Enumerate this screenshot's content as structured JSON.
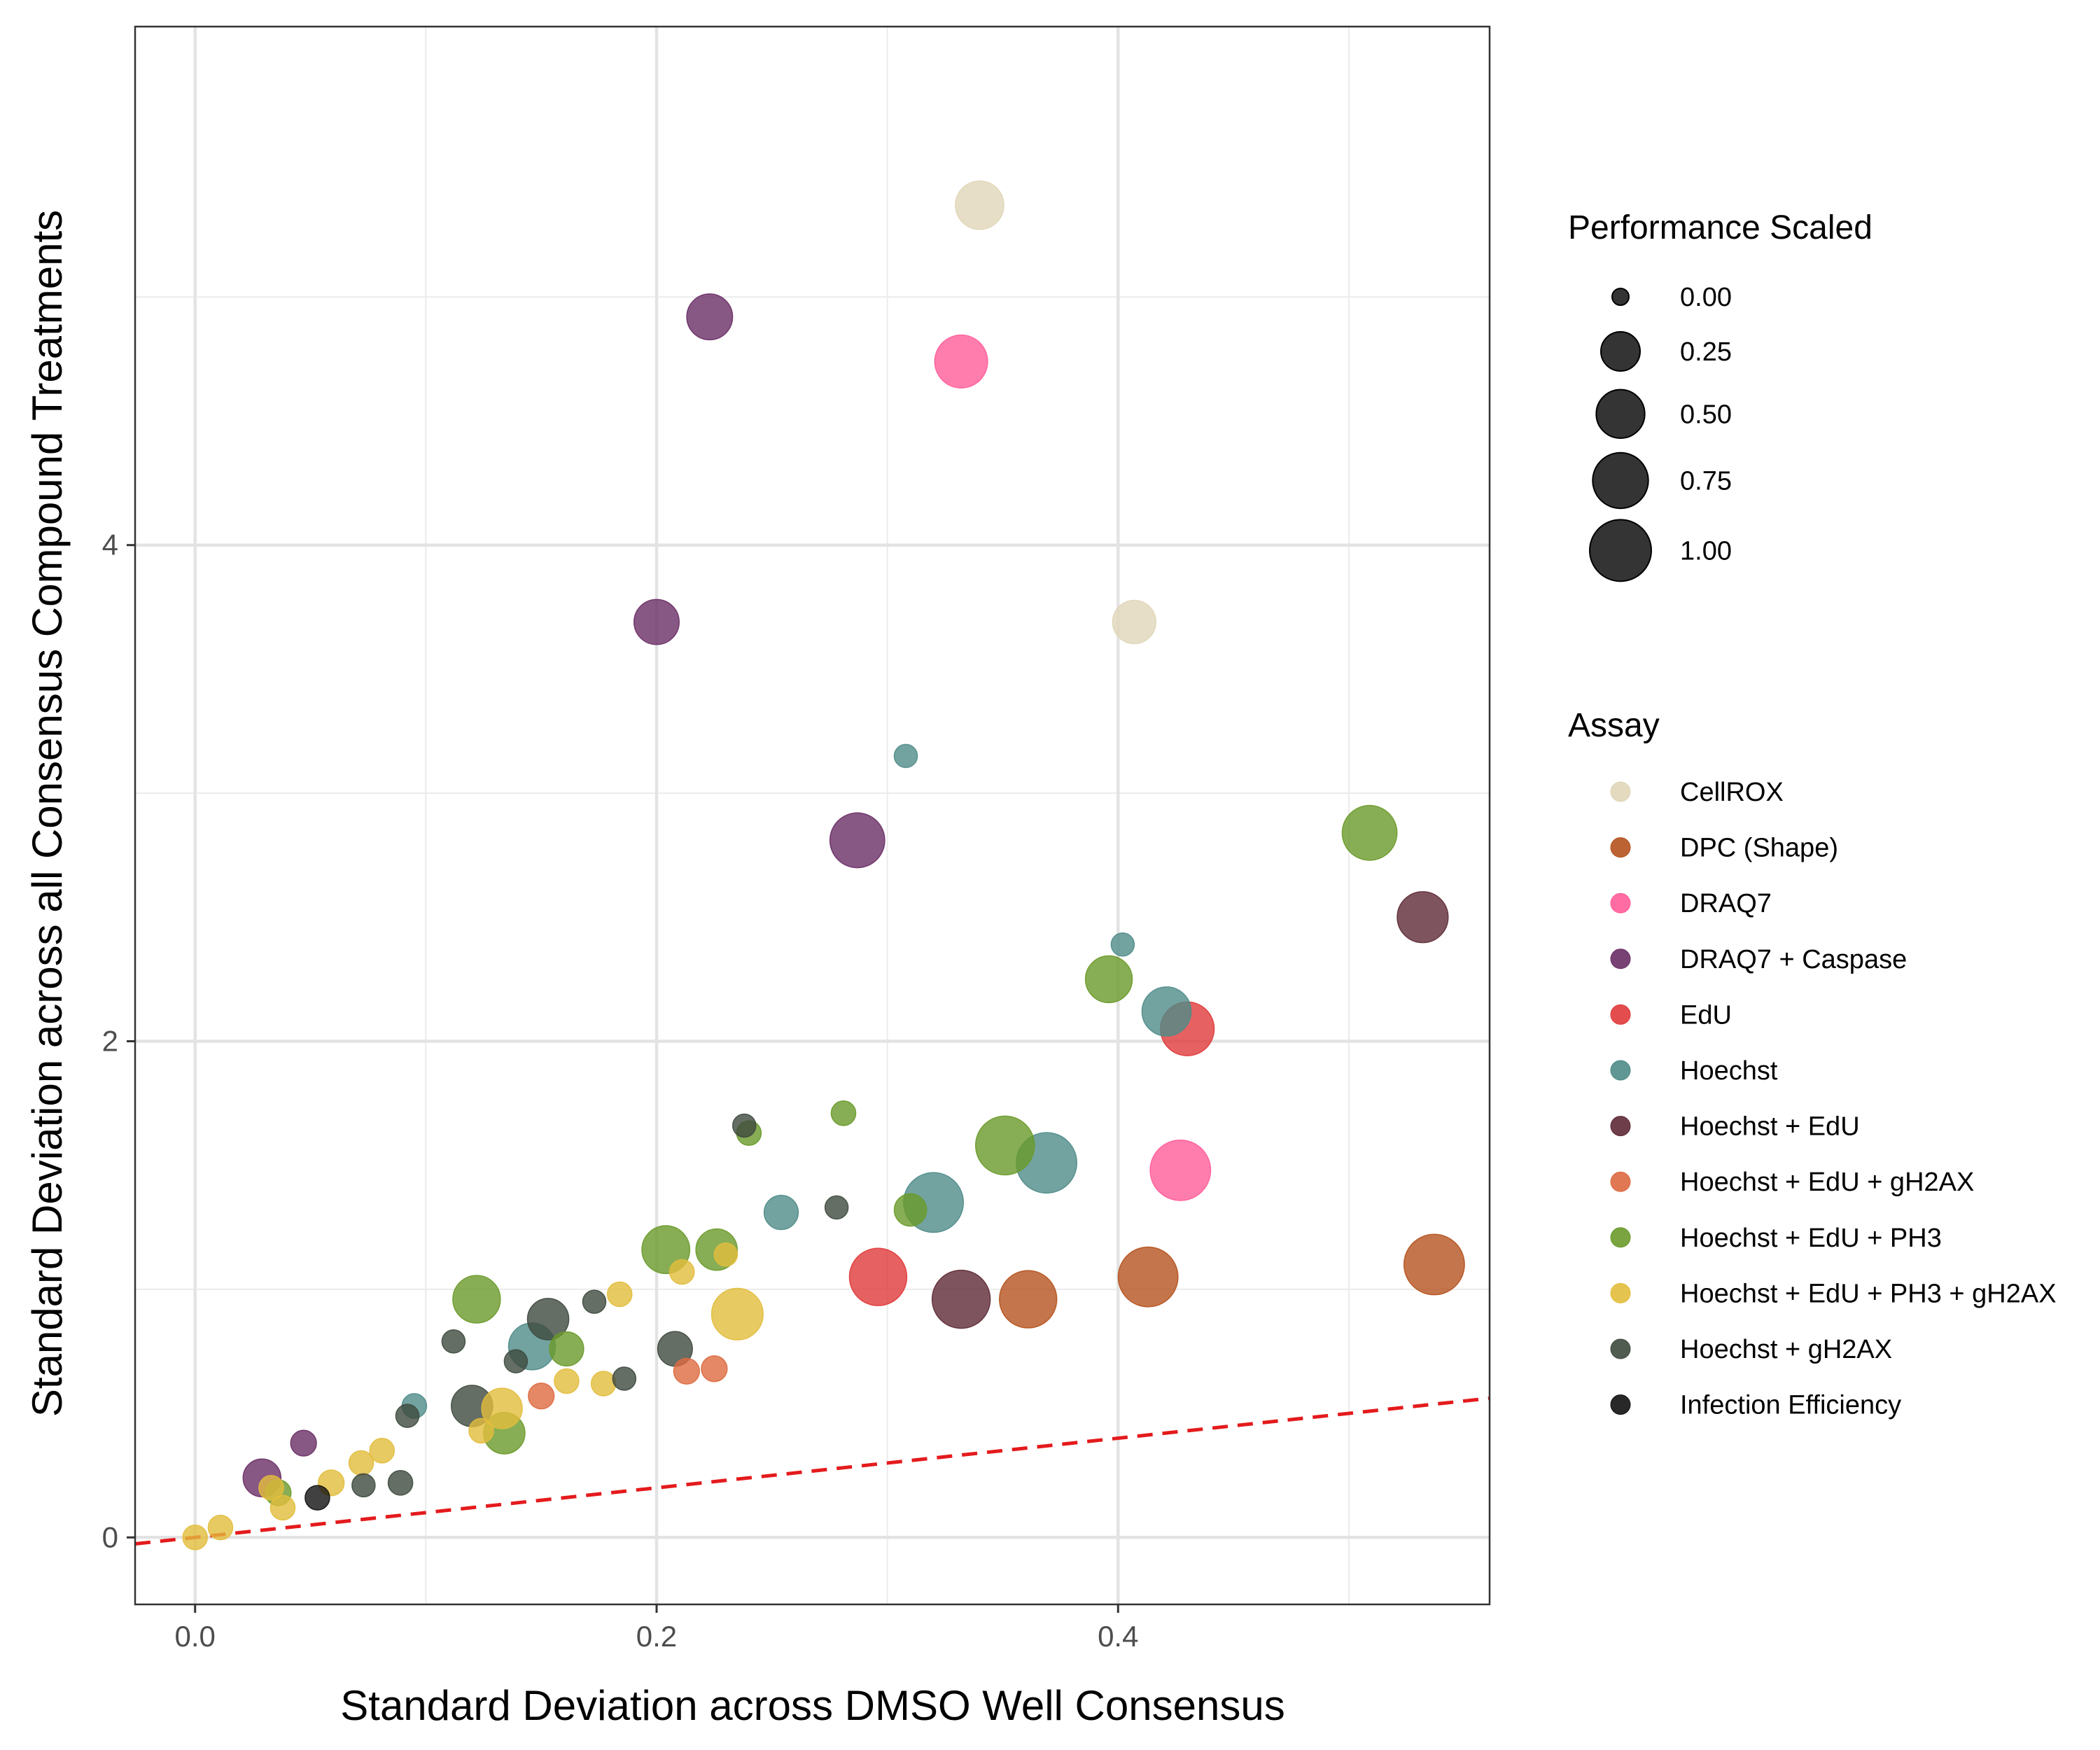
{
  "chart_data": {
    "type": "scatter",
    "title": "",
    "xlabel": "Standard Deviation across DMSO Well Consensus",
    "ylabel": "Standard Deviation across all Consensus Compound Treatments",
    "xlim": [
      -0.026,
      0.561
    ],
    "ylim": [
      -0.27,
      6.09
    ],
    "x_ticks": [
      0.0,
      0.2,
      0.4
    ],
    "x_tick_labels": [
      "0.0",
      "0.2",
      "0.4"
    ],
    "y_ticks": [
      0,
      2,
      4
    ],
    "y_tick_labels": [
      "0",
      "2",
      "4"
    ],
    "grid": true,
    "reference_line": {
      "slope": 1,
      "intercept": 0,
      "color": "#e41a1c",
      "style": "dashed"
    },
    "size_legend": {
      "title": "Performance Scaled",
      "levels": [
        {
          "label": "0.00",
          "value": 0.0
        },
        {
          "label": "0.25",
          "value": 0.25
        },
        {
          "label": "0.50",
          "value": 0.5
        },
        {
          "label": "0.75",
          "value": 0.75
        },
        {
          "label": "1.00",
          "value": 1.0
        }
      ]
    },
    "color_legend": {
      "title": "Assay",
      "position": "right",
      "entries": [
        {
          "label": "CellROX",
          "color": "#E0D6B8"
        },
        {
          "label": "DPC (Shape)",
          "color": "#B5521E"
        },
        {
          "label": "DRAQ7",
          "color": "#FF5C99"
        },
        {
          "label": "DRAQ7 + Caspase",
          "color": "#6A2E66"
        },
        {
          "label": "EdU",
          "color": "#E03A3A"
        },
        {
          "label": "Hoechst",
          "color": "#4F8C88"
        },
        {
          "label": "Hoechst + EdU",
          "color": "#5E2A36"
        },
        {
          "label": "Hoechst + EdU + gH2AX",
          "color": "#DD6A40"
        },
        {
          "label": "Hoechst + EdU + PH3",
          "color": "#6A9A2A"
        },
        {
          "label": "Hoechst + EdU + PH3 + gH2AX",
          "color": "#E2BD3C"
        },
        {
          "label": "Hoechst + gH2AX",
          "color": "#3E4A3E"
        },
        {
          "label": "Infection Efficiency",
          "color": "#111111"
        }
      ]
    },
    "series": [
      {
        "name": "CellROX",
        "points": [
          {
            "x": 0.34,
            "y": 5.37,
            "size": 0.5
          },
          {
            "x": 0.407,
            "y": 3.69,
            "size": 0.35
          }
        ]
      },
      {
        "name": "DPC (Shape)",
        "points": [
          {
            "x": 0.413,
            "y": 1.05,
            "size": 0.92
          },
          {
            "x": 0.537,
            "y": 1.1,
            "size": 0.95
          },
          {
            "x": 0.361,
            "y": 0.96,
            "size": 0.82
          }
        ]
      },
      {
        "name": "DRAQ7",
        "points": [
          {
            "x": 0.332,
            "y": 4.74,
            "size": 0.65
          },
          {
            "x": 0.427,
            "y": 1.48,
            "size": 0.95
          }
        ]
      },
      {
        "name": "DRAQ7 + Caspase",
        "points": [
          {
            "x": 0.223,
            "y": 4.92,
            "size": 0.42
          },
          {
            "x": 0.2,
            "y": 3.69,
            "size": 0.4
          },
          {
            "x": 0.287,
            "y": 2.81,
            "size": 0.72
          },
          {
            "x": 0.029,
            "y": 0.24,
            "size": 0.22
          },
          {
            "x": 0.047,
            "y": 0.38,
            "size": 0.04
          }
        ]
      },
      {
        "name": "EdU",
        "points": [
          {
            "x": 0.43,
            "y": 2.05,
            "size": 0.68
          },
          {
            "x": 0.296,
            "y": 1.05,
            "size": 0.82
          }
        ]
      },
      {
        "name": "Hoechst",
        "points": [
          {
            "x": 0.308,
            "y": 3.15,
            "size": 0.02
          },
          {
            "x": 0.402,
            "y": 2.39,
            "size": 0.02
          },
          {
            "x": 0.421,
            "y": 2.12,
            "size": 0.52
          },
          {
            "x": 0.369,
            "y": 1.51,
            "size": 0.95
          },
          {
            "x": 0.32,
            "y": 1.35,
            "size": 0.92
          },
          {
            "x": 0.254,
            "y": 1.31,
            "size": 0.15
          },
          {
            "x": 0.146,
            "y": 0.77,
            "size": 0.45
          },
          {
            "x": 0.095,
            "y": 0.53,
            "size": 0.03
          }
        ]
      },
      {
        "name": "Hoechst + EdU",
        "points": [
          {
            "x": 0.532,
            "y": 2.5,
            "size": 0.58
          },
          {
            "x": 0.332,
            "y": 0.96,
            "size": 0.85
          }
        ]
      },
      {
        "name": "Hoechst + EdU + gH2AX",
        "points": [
          {
            "x": 0.15,
            "y": 0.57,
            "size": 0.04
          },
          {
            "x": 0.213,
            "y": 0.67,
            "size": 0.04
          },
          {
            "x": 0.225,
            "y": 0.68,
            "size": 0.04
          }
        ]
      },
      {
        "name": "Hoechst + EdU + PH3",
        "points": [
          {
            "x": 0.509,
            "y": 2.84,
            "size": 0.72
          },
          {
            "x": 0.396,
            "y": 2.25,
            "size": 0.45
          },
          {
            "x": 0.351,
            "y": 1.58,
            "size": 0.88
          },
          {
            "x": 0.281,
            "y": 1.71,
            "size": 0.03
          },
          {
            "x": 0.24,
            "y": 1.63,
            "size": 0.03
          },
          {
            "x": 0.31,
            "y": 1.32,
            "size": 0.12
          },
          {
            "x": 0.204,
            "y": 1.16,
            "size": 0.48
          },
          {
            "x": 0.226,
            "y": 1.16,
            "size": 0.3
          },
          {
            "x": 0.122,
            "y": 0.96,
            "size": 0.47
          },
          {
            "x": 0.161,
            "y": 0.76,
            "size": 0.15
          },
          {
            "x": 0.134,
            "y": 0.42,
            "size": 0.3
          },
          {
            "x": 0.036,
            "y": 0.18,
            "size": 0.04
          }
        ]
      },
      {
        "name": "Hoechst + EdU + PH3 + gH2AX",
        "points": [
          {
            "x": 0.235,
            "y": 0.9,
            "size": 0.6
          },
          {
            "x": 0.23,
            "y": 1.14,
            "size": 0.02
          },
          {
            "x": 0.211,
            "y": 1.07,
            "size": 0.03
          },
          {
            "x": 0.184,
            "y": 0.98,
            "size": 0.03
          },
          {
            "x": 0.133,
            "y": 0.52,
            "size": 0.28
          },
          {
            "x": 0.161,
            "y": 0.63,
            "size": 0.03
          },
          {
            "x": 0.177,
            "y": 0.62,
            "size": 0.03
          },
          {
            "x": 0.124,
            "y": 0.43,
            "size": 0.03
          },
          {
            "x": 0.081,
            "y": 0.35,
            "size": 0.03
          },
          {
            "x": 0.072,
            "y": 0.3,
            "size": 0.03
          },
          {
            "x": 0.059,
            "y": 0.22,
            "size": 0.04
          },
          {
            "x": 0.033,
            "y": 0.2,
            "size": 0.03
          },
          {
            "x": 0.038,
            "y": 0.12,
            "size": 0.03
          },
          {
            "x": 0.011,
            "y": 0.04,
            "size": 0.03
          },
          {
            "x": 0.0,
            "y": 0.0,
            "size": 0.03
          }
        ]
      },
      {
        "name": "Hoechst + gH2AX",
        "points": [
          {
            "x": 0.153,
            "y": 0.88,
            "size": 0.3
          },
          {
            "x": 0.12,
            "y": 0.53,
            "size": 0.3
          },
          {
            "x": 0.208,
            "y": 0.76,
            "size": 0.16
          },
          {
            "x": 0.238,
            "y": 1.66,
            "size": 0.02
          },
          {
            "x": 0.278,
            "y": 1.33,
            "size": 0.02
          },
          {
            "x": 0.173,
            "y": 0.95,
            "size": 0.02
          },
          {
            "x": 0.112,
            "y": 0.79,
            "size": 0.02
          },
          {
            "x": 0.139,
            "y": 0.71,
            "size": 0.02
          },
          {
            "x": 0.186,
            "y": 0.64,
            "size": 0.02
          },
          {
            "x": 0.092,
            "y": 0.49,
            "size": 0.02
          },
          {
            "x": 0.089,
            "y": 0.22,
            "size": 0.03
          },
          {
            "x": 0.073,
            "y": 0.21,
            "size": 0.02
          }
        ]
      },
      {
        "name": "Infection Efficiency",
        "points": [
          {
            "x": 0.053,
            "y": 0.16,
            "size": 0.03
          }
        ]
      }
    ]
  }
}
